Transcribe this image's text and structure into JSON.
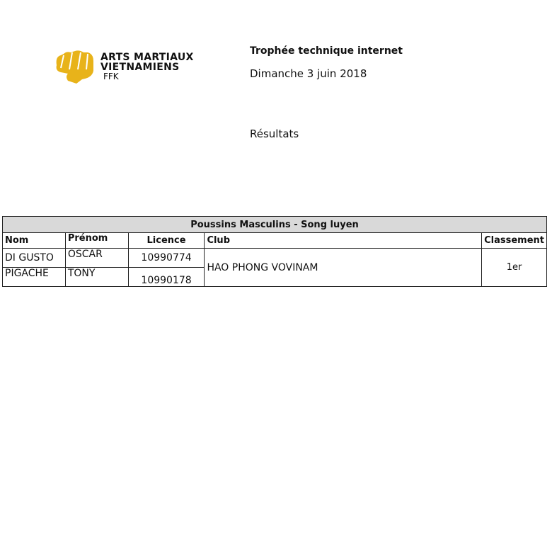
{
  "logo": {
    "line1": "ARTS MARTIAUX",
    "line2": "VIETNAMIENS",
    "line3": "FFK",
    "color": "#e8b31a"
  },
  "header": {
    "title": "Trophée technique internet",
    "date": "Dimanche 3 juin 2018",
    "section": "Résultats"
  },
  "table": {
    "caption": "Poussins Masculins - Song luyen",
    "columns": [
      "Nom",
      "Prénom",
      "Licence",
      "Club",
      "Classement"
    ],
    "rows": [
      {
        "nom": "DI GUSTO",
        "prenom": "OSCAR",
        "licence": "10990774"
      },
      {
        "nom": "PIGACHE",
        "prenom": "TONY",
        "licence": "10990178"
      }
    ],
    "club": "HAO PHONG VOVINAM",
    "classement": "1er"
  }
}
